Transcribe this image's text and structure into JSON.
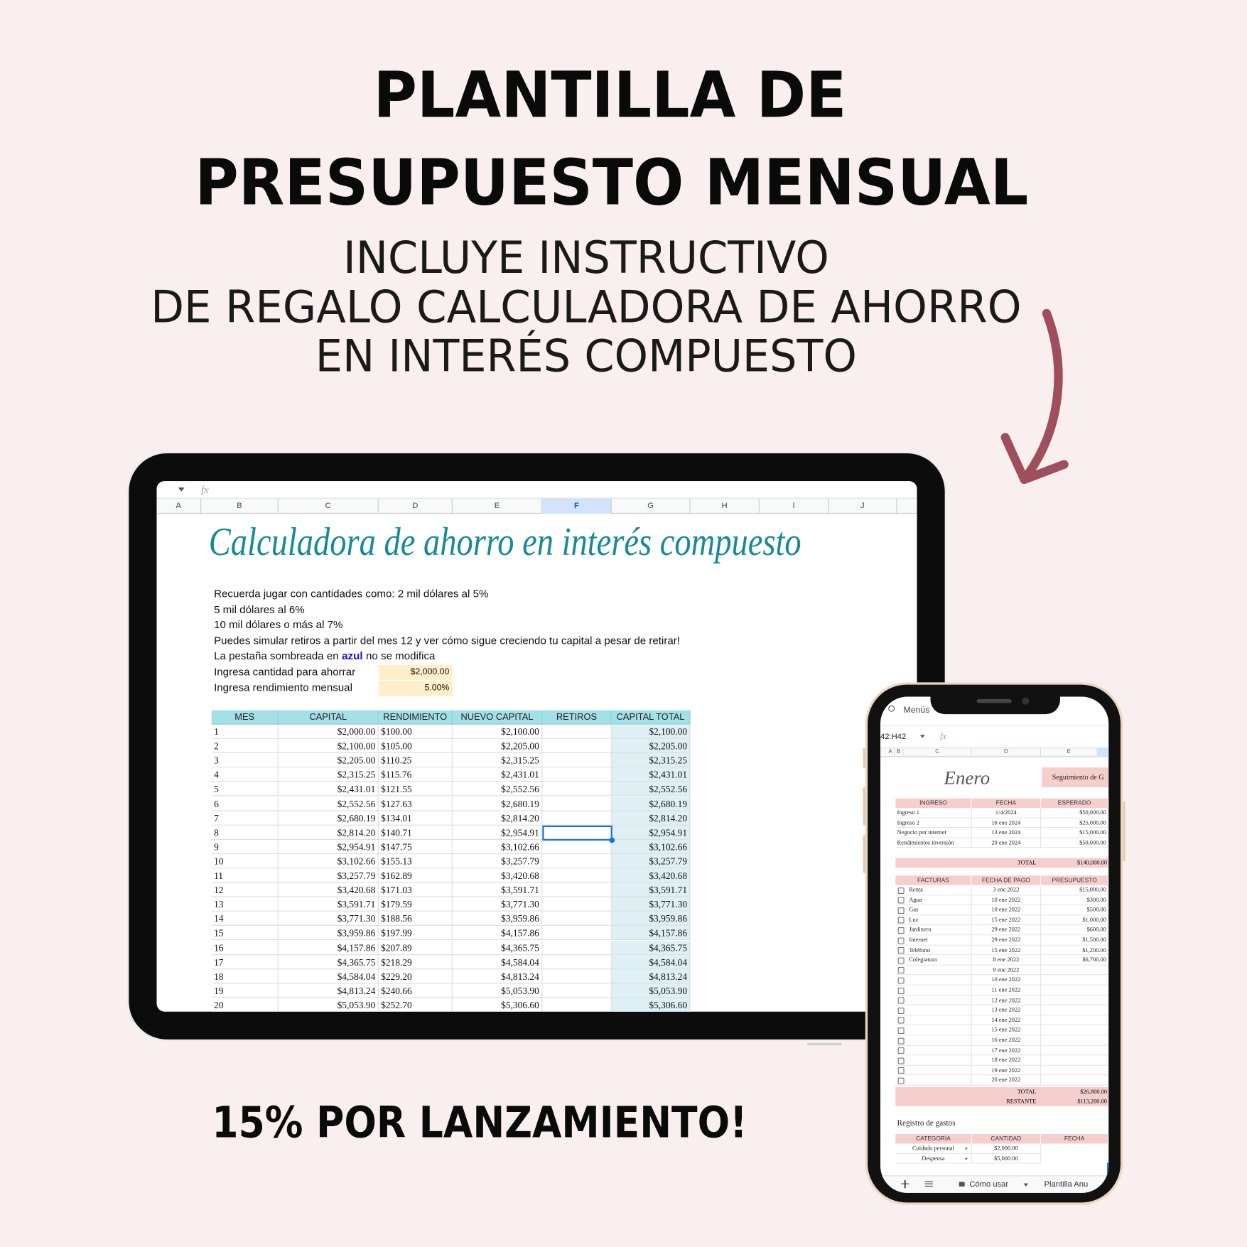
{
  "header": {
    "title": [
      "PLANTILLA DE",
      "PRESUPUESTO MENSUAL"
    ],
    "subtitle": [
      "INCLUYE INSTRUCTIVO",
      "DE REGALO CALCULADORA DE AHORRO",
      "EN INTERÉS COMPUESTO"
    ]
  },
  "tablet": {
    "formula_label": "fx",
    "columns": [
      "A",
      "B",
      "C",
      "D",
      "E",
      "F",
      "G",
      "H",
      "I",
      "J"
    ],
    "title": "Calculadora de ahorro en interés compuesto",
    "notes": [
      "Recuerda jugar con cantidades como: 2 mil dólares al 5%",
      "5 mil dólares al 6%",
      "10 mil dólares o más al 7%",
      "Puedes simular retiros a partir del mes 12 y ver cómo sigue creciendo tu capital a pesar de retirar!"
    ],
    "shaded_note": {
      "before": "La pestaña sombreada en",
      "emphasis": "azul",
      "after": "no se modifica"
    },
    "inputs": [
      {
        "label": "Ingresa cantidad para ahorrar",
        "value": "$2,000.00"
      },
      {
        "label": "Ingresa rendimiento mensual",
        "value": "5.00%"
      }
    ],
    "table": {
      "headers": [
        "MES",
        "CAPITAL",
        "RENDIMIENTO",
        "NUEVO CAPITAL",
        "RETIROS",
        "CAPITAL TOTAL"
      ],
      "rows": [
        [
          "1",
          "$2,000.00",
          "$100.00",
          "$2,100.00",
          "$2,100.00"
        ],
        [
          "2",
          "$2,100.00",
          "$105.00",
          "$2,205.00",
          "$2,205.00"
        ],
        [
          "3",
          "$2,205.00",
          "$110.25",
          "$2,315.25",
          "$2,315.25"
        ],
        [
          "4",
          "$2,315.25",
          "$115.76",
          "$2,431.01",
          "$2,431.01"
        ],
        [
          "5",
          "$2,431.01",
          "$121.55",
          "$2,552.56",
          "$2,552.56"
        ],
        [
          "6",
          "$2,552.56",
          "$127.63",
          "$2,680.19",
          "$2,680.19"
        ],
        [
          "7",
          "$2,680.19",
          "$134.01",
          "$2,814.20",
          "$2,814.20"
        ],
        [
          "8",
          "$2,814.20",
          "$140.71",
          "$2,954.91",
          "$2,954.91"
        ],
        [
          "9",
          "$2,954.91",
          "$147.75",
          "$3,102.66",
          "$3,102.66"
        ],
        [
          "10",
          "$3,102.66",
          "$155.13",
          "$3,257.79",
          "$3,257.79"
        ],
        [
          "11",
          "$3,257.79",
          "$162.89",
          "$3,420.68",
          "$3,420.68"
        ],
        [
          "12",
          "$3,420.68",
          "$171.03",
          "$3,591.71",
          "$3,591.71"
        ],
        [
          "13",
          "$3,591.71",
          "$179.59",
          "$3,771.30",
          "$3,771.30"
        ],
        [
          "14",
          "$3,771.30",
          "$188.56",
          "$3,959.86",
          "$3,959.86"
        ],
        [
          "15",
          "$3,959.86",
          "$197.99",
          "$4,157.86",
          "$4,157.86"
        ],
        [
          "16",
          "$4,157.86",
          "$207.89",
          "$4,365.75",
          "$4,365.75"
        ],
        [
          "17",
          "$4,365.75",
          "$218.29",
          "$4,584.04",
          "$4,584.04"
        ],
        [
          "18",
          "$4,584.04",
          "$229.20",
          "$4,813.24",
          "$4,813.24"
        ],
        [
          "19",
          "$4,813.24",
          "$240.66",
          "$5,053.90",
          "$5,053.90"
        ],
        [
          "20",
          "$5,053.90",
          "$252.70",
          "$5,306.60",
          "$5,306.60"
        ]
      ]
    }
  },
  "phone": {
    "search": "Menús",
    "cell_ref": "42:H42",
    "formula_label": "fx",
    "columns": [
      "A",
      "B",
      "C",
      "D",
      "E"
    ],
    "sheet_title": "Enero",
    "tracking_label": "Seguimiento de G",
    "income": {
      "headers": [
        "INGRESO",
        "FECHA",
        "ESPERADO"
      ],
      "rows": [
        [
          "Ingreso 1",
          "1/4/2024",
          "$50,000.00"
        ],
        [
          "Ingreso 2",
          "16 ene 2024",
          "$25,000.00"
        ],
        [
          "Negocio por internet",
          "13 ene 2024",
          "$15,000.00"
        ],
        [
          "Rendimientos inversión",
          "20 ene 2024",
          "$50,000.00"
        ]
      ],
      "total_label": "TOTAL",
      "total": "$140,000.00"
    },
    "bills": {
      "headers": [
        "FACTURAS",
        "FECHA DE PAGO",
        "PRESUPUESTO"
      ],
      "rows": [
        {
          "name": "Renta",
          "date": "3 ene 2022",
          "budget": "$15,000.00"
        },
        {
          "name": "Agua",
          "date": "10 ene 2022",
          "budget": "$300.00"
        },
        {
          "name": "Gas",
          "date": "10 ene 2022",
          "budget": "$500.00"
        },
        {
          "name": "Luz",
          "date": "15 ene 2022",
          "budget": "$1,000.00"
        },
        {
          "name": "Jardinero",
          "date": "29 ene 2022",
          "budget": "$600.00"
        },
        {
          "name": "Internet",
          "date": "29 ene 2022",
          "budget": "$1,500.00"
        },
        {
          "name": "Teléfono",
          "date": "15 ene 2022",
          "budget": "$1,200.00"
        },
        {
          "name": "Colegiatura",
          "date": "8 ene 2022",
          "budget": "$6,700.00"
        },
        {
          "date": "9 ene 2022"
        },
        {
          "date": "10 ene 2022"
        },
        {
          "date": "11 ene 2022"
        },
        {
          "date": "12 ene 2022"
        },
        {
          "date": "13 ene 2022"
        },
        {
          "date": "14 ene 2022"
        },
        {
          "date": "15 ene 2022"
        },
        {
          "date": "16 ene 2022"
        },
        {
          "date": "17 ene 2022"
        },
        {
          "date": "18 ene 2022"
        },
        {
          "date": "19 ene 2022"
        },
        {
          "date": "20 ene 2022"
        }
      ],
      "total_label": "TOTAL",
      "total": "$26,800.00",
      "remaining_label": "RESTANTE",
      "remaining": "$113,200.00"
    },
    "expenses": {
      "title": "Registro de gastos",
      "headers": [
        "CATEGORÍA",
        "CANTIDAD",
        "FECHA"
      ],
      "rows": [
        [
          "Cuidado personal",
          "$2,000.00"
        ],
        [
          "Despensa",
          "$5,000.00"
        ]
      ]
    },
    "tabs": [
      "Cómo usar",
      "Plantilla Anu"
    ]
  },
  "footer": {
    "promo": "15% POR LANZAMIENTO!"
  }
}
